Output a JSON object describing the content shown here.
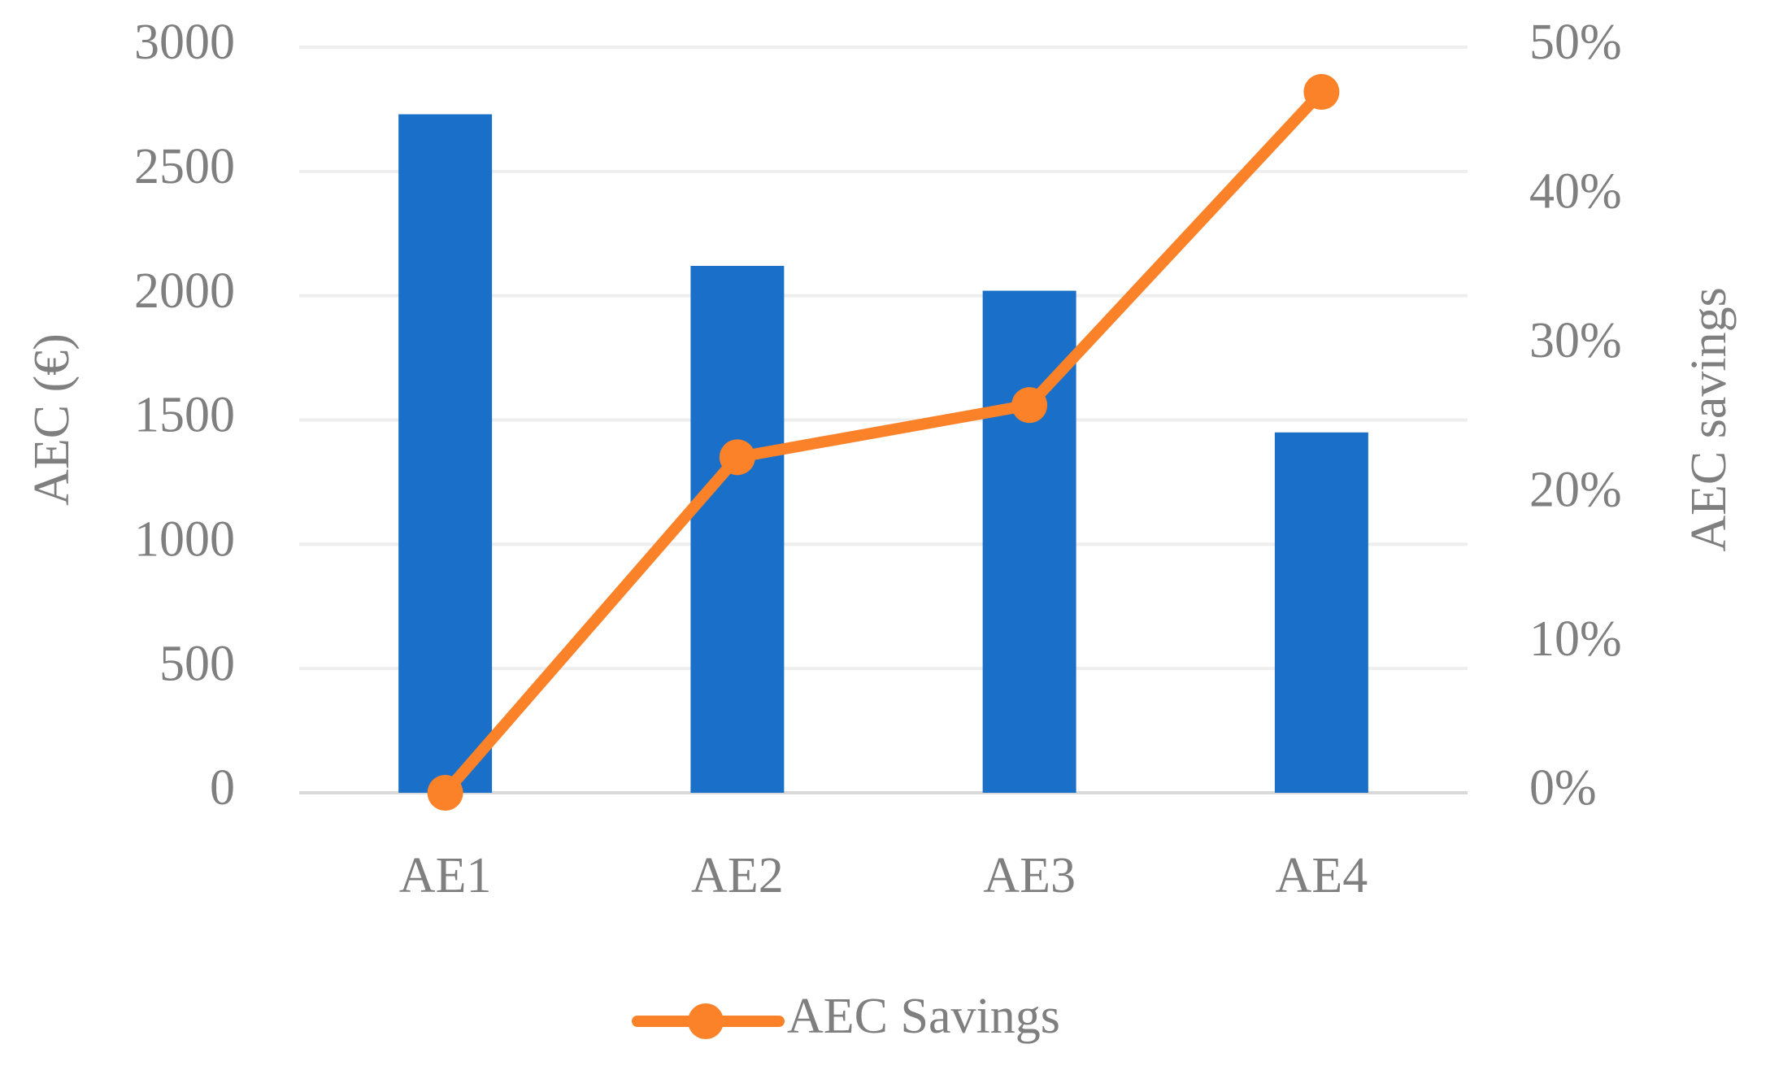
{
  "chart_data": {
    "type": "bar-line",
    "categories": [
      "AE1",
      "AE2",
      "AE3",
      "AE4"
    ],
    "series": [
      {
        "type": "bar",
        "color": "#1a70c8",
        "values": [
          2730,
          2120,
          2020,
          1450
        ]
      },
      {
        "type": "line",
        "name": "AEC Savings",
        "color": "#fb8228",
        "axis": "y2",
        "values": [
          0,
          22.5,
          26,
          47
        ]
      }
    ],
    "y_label": "AEC (€)",
    "y2_label": "AEC savings",
    "ylim": [
      0,
      3000
    ],
    "yticks": [
      0,
      500,
      1000,
      1500,
      2000,
      2500,
      3000
    ],
    "y2lim": [
      0,
      50
    ],
    "y2ticks": [
      {
        "value": 0,
        "label": "0%"
      },
      {
        "value": 10,
        "label": "10%"
      },
      {
        "value": 20,
        "label": "20%"
      },
      {
        "value": 30,
        "label": "30%"
      },
      {
        "value": 40,
        "label": "40%"
      },
      {
        "value": 50,
        "label": "50%"
      }
    ],
    "grid": true,
    "legend": "bottom"
  }
}
